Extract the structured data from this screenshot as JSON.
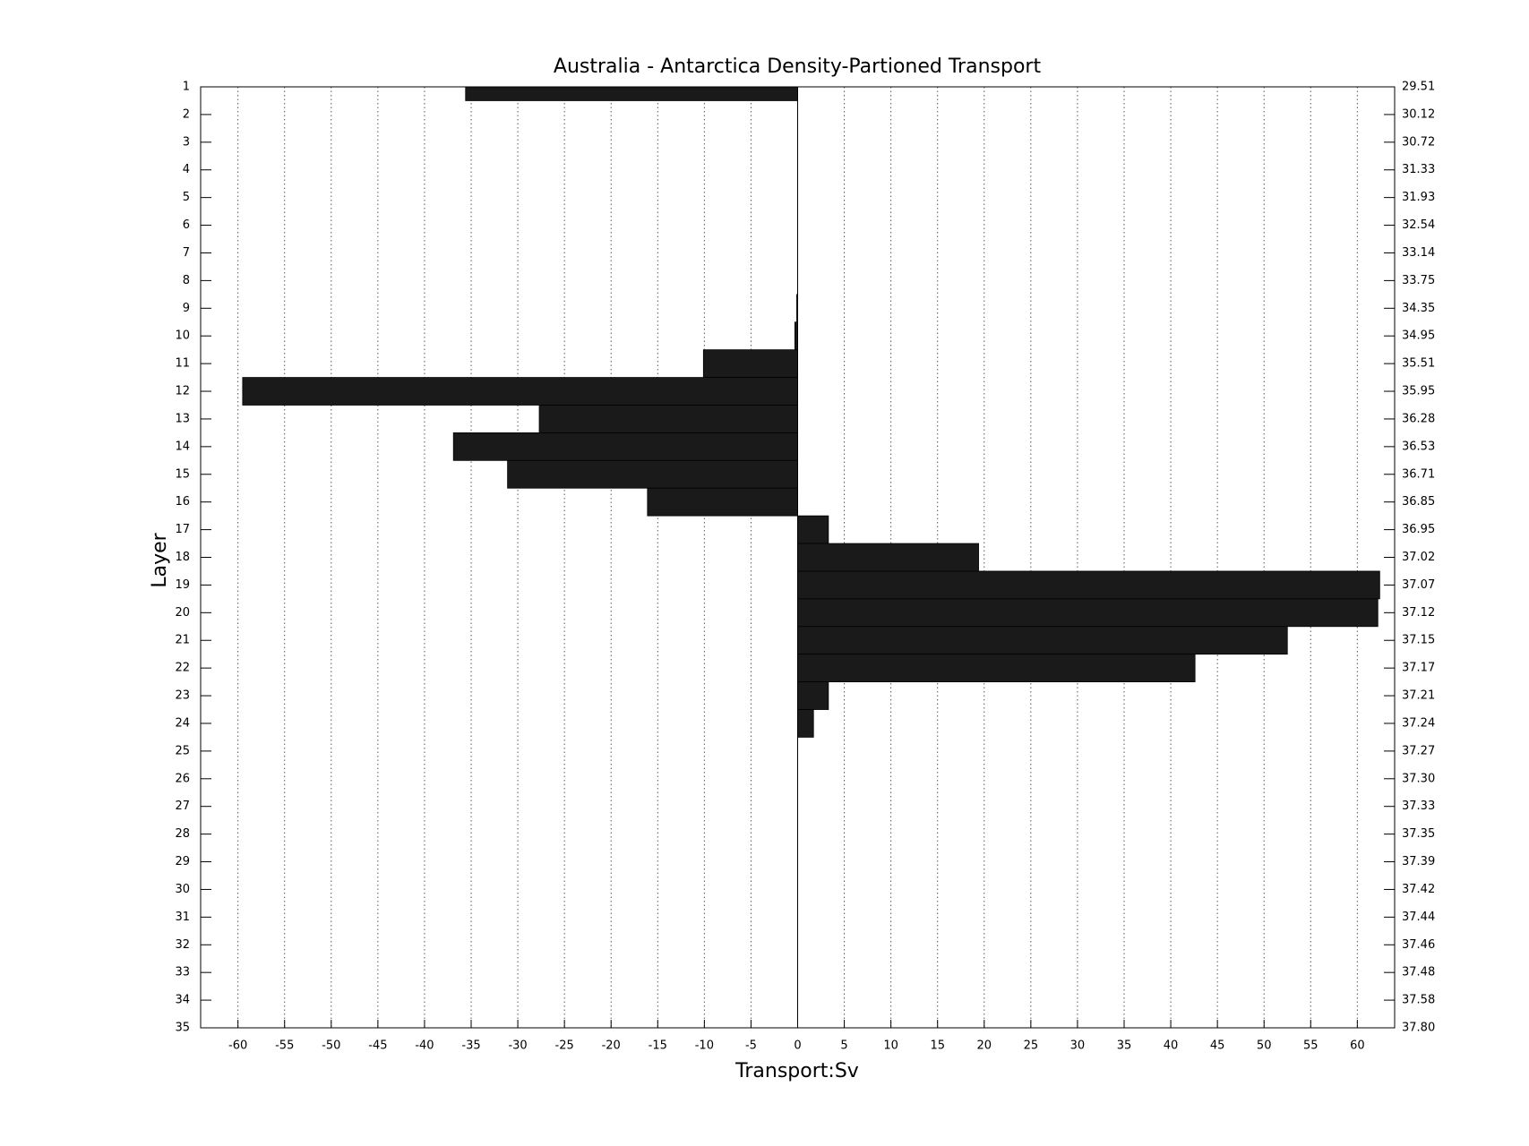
{
  "chart_data": {
    "type": "barh",
    "title": "Australia - Antarctica Density-Partioned Transport",
    "xlabel": "Transport:Sv",
    "ylabel": "Layer",
    "layers": [
      1,
      2,
      3,
      4,
      5,
      6,
      7,
      8,
      9,
      10,
      11,
      12,
      13,
      14,
      15,
      16,
      17,
      18,
      19,
      20,
      21,
      22,
      23,
      24,
      25,
      26,
      27,
      28,
      29,
      30,
      31,
      32,
      33,
      34,
      35
    ],
    "values": [
      -35.6,
      0,
      0,
      0,
      0,
      0,
      0,
      0,
      -0.1,
      -0.3,
      -10.1,
      -59.5,
      -27.7,
      -36.9,
      -31.1,
      -16.1,
      3.3,
      19.4,
      62.4,
      62.2,
      52.5,
      42.6,
      3.3,
      1.7,
      0,
      0,
      0,
      0,
      0,
      0,
      0,
      0,
      0,
      0,
      0
    ],
    "color": "#1a1a1a",
    "xlim": [
      -64,
      64
    ],
    "xticks": [
      -60,
      -55,
      -50,
      -45,
      -40,
      -35,
      -30,
      -25,
      -20,
      -15,
      -10,
      -5,
      0,
      5,
      10,
      15,
      20,
      25,
      30,
      35,
      40,
      45,
      50,
      55,
      60
    ],
    "ylim": [
      1,
      35
    ],
    "y_reversed": true,
    "yticks": [
      1,
      2,
      3,
      4,
      5,
      6,
      7,
      8,
      9,
      10,
      11,
      12,
      13,
      14,
      15,
      16,
      17,
      18,
      19,
      20,
      21,
      22,
      23,
      24,
      25,
      26,
      27,
      28,
      29,
      30,
      31,
      32,
      33,
      34,
      35
    ],
    "y2_labels": [
      "29.51",
      "30.12",
      "30.72",
      "31.33",
      "31.93",
      "32.54",
      "33.14",
      "33.75",
      "34.35",
      "34.95",
      "35.51",
      "35.95",
      "36.28",
      "36.53",
      "36.71",
      "36.85",
      "36.95",
      "37.02",
      "37.07",
      "37.12",
      "37.15",
      "37.17",
      "37.21",
      "37.24",
      "37.27",
      "37.30",
      "37.33",
      "37.35",
      "37.39",
      "37.42",
      "37.44",
      "37.46",
      "37.48",
      "37.58",
      "37.80"
    ],
    "grid": true
  }
}
